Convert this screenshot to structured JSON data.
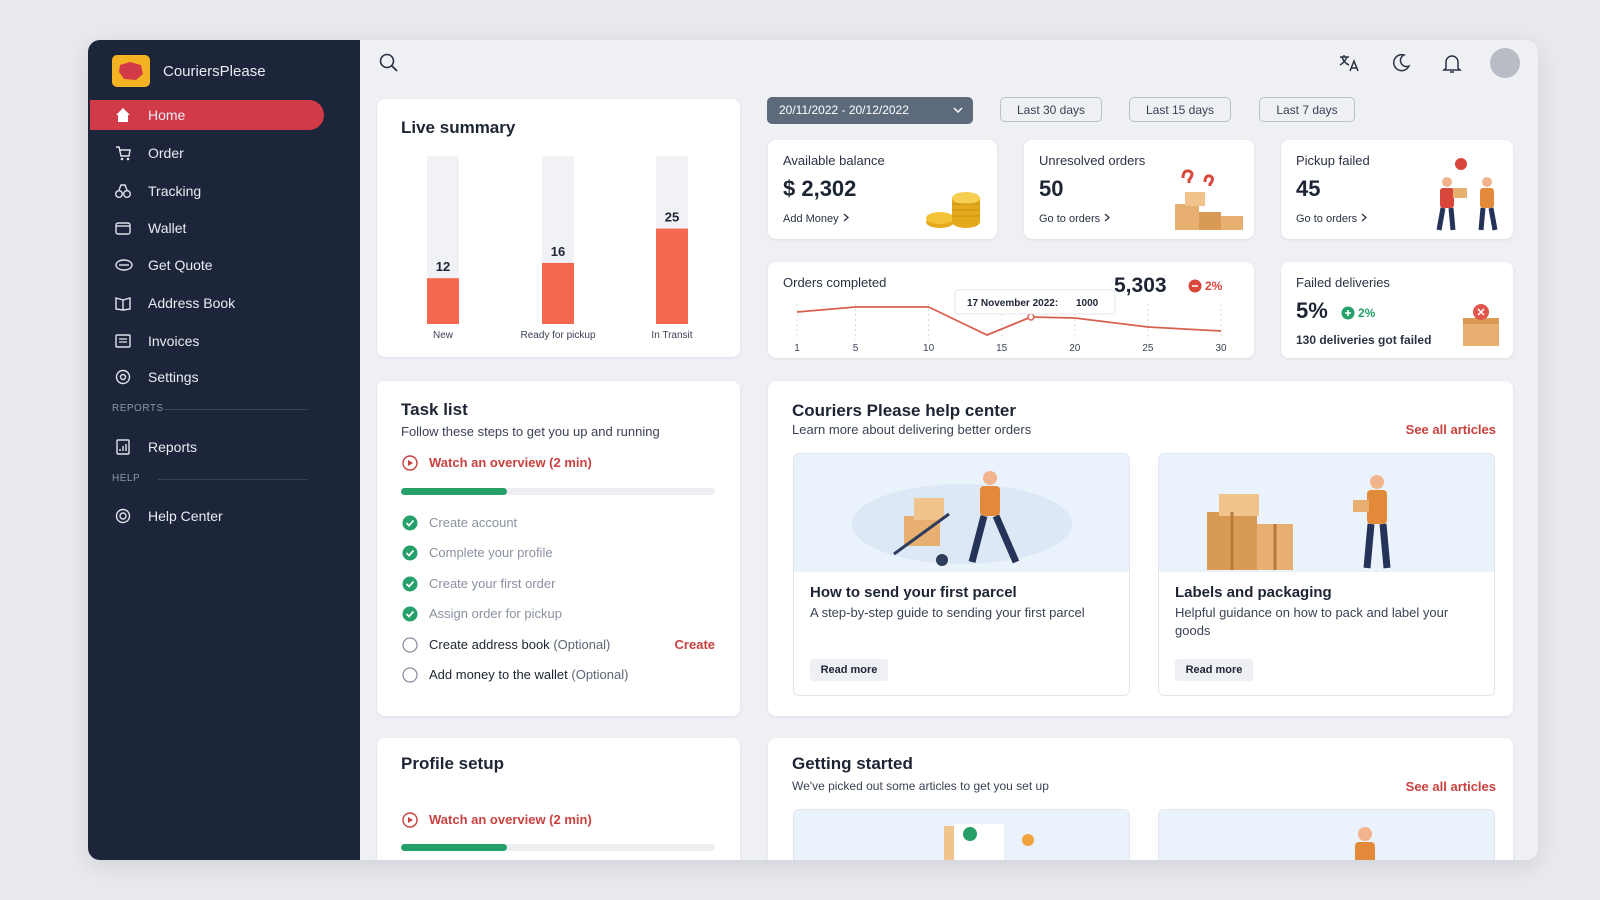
{
  "sidebar": {
    "brand": "CouriersPlease",
    "nav": [
      "Home",
      "Order",
      "Tracking",
      "Wallet",
      "Get Quote",
      "Address Book",
      "Invoices",
      "Settings"
    ],
    "sections": [
      {
        "heading": "REPORTS",
        "items": [
          "Reports"
        ]
      },
      {
        "heading": "HELP",
        "items": [
          "Help Center"
        ]
      }
    ]
  },
  "filters": {
    "date_range": "20/11/2022 - 20/12/2022",
    "options": [
      "Last 30 days",
      "Last 15 days",
      "Last 7 days"
    ]
  },
  "chart_data": [
    {
      "type": "bar",
      "title": "Live summary",
      "categories": [
        "New",
        "Ready for pickup",
        "In Transit"
      ],
      "values": [
        12,
        16,
        25
      ],
      "color": "#f4684f",
      "ylim": [
        0,
        44
      ]
    },
    {
      "type": "line",
      "title": "Orders completed",
      "total": "5,303",
      "change": "2%",
      "x": [
        1,
        5,
        10,
        14,
        17,
        20,
        25,
        30
      ],
      "values": [
        1050,
        1100,
        1100,
        820,
        1000,
        990,
        900,
        860
      ],
      "color": "#d9604f",
      "xlim": [
        1,
        30
      ],
      "xticks": [
        1,
        5,
        10,
        15,
        20,
        25,
        30
      ],
      "ylim": [
        700,
        1300
      ],
      "grid": true,
      "tooltip": {
        "label": "17 November 2022:",
        "value": 1000
      }
    }
  ],
  "stats": [
    {
      "label": "Available balance",
      "value": "$ 2,302",
      "link": "Add Money"
    },
    {
      "label": "Unresolved orders",
      "value": "50",
      "link": "Go to orders"
    },
    {
      "label": "Pickup failed",
      "value": "45",
      "link": "Go to orders"
    },
    {
      "label": "Failed deliveries",
      "value": "5%",
      "change": "2%",
      "note": "130 deliveries got failed"
    }
  ],
  "task_list": {
    "title": "Task list",
    "subtitle": "Follow these steps to get you up and running",
    "video": "Watch an overview (2 min)",
    "items": [
      {
        "label": "Create account",
        "done": true
      },
      {
        "label": "Complete your profile",
        "done": true
      },
      {
        "label": "Create your first order",
        "done": true
      },
      {
        "label": "Assign order for pickup",
        "done": true
      },
      {
        "label": "Create address book",
        "note": "(Optional)",
        "action": "Create",
        "done": false
      },
      {
        "label": "Add money to the wallet",
        "note": "(Optional)",
        "done": false
      }
    ]
  },
  "help_center": {
    "title": "Couriers Please help center",
    "subtitle": "Learn more about delivering better orders",
    "link": "See all articles",
    "articles": [
      {
        "title": "How to send your first parcel",
        "description": "A step-by-step guide to sending your first parcel",
        "button": "Read more"
      },
      {
        "title": "Labels and packaging",
        "description": "Helpful guidance on how to pack and label your goods",
        "button": "Read more"
      }
    ]
  },
  "profile_setup": {
    "title": "Profile setup",
    "video": "Watch an overview (2 min)"
  },
  "getting_started": {
    "title": "Getting started",
    "subtitle": "We've picked out some articles to get you set up",
    "link": "See all articles"
  }
}
